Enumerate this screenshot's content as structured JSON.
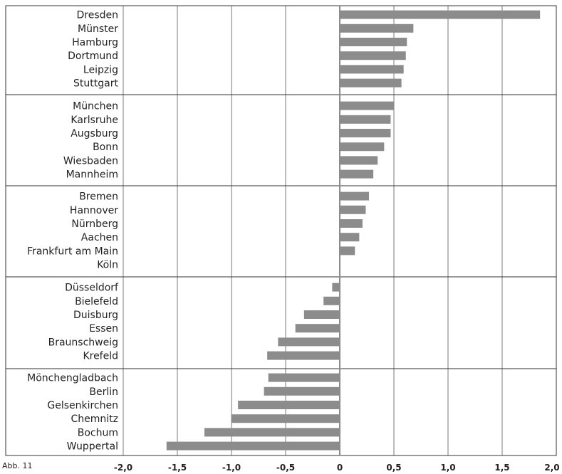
{
  "chart_data": {
    "type": "bar",
    "orientation": "horizontal",
    "categories": [
      "Dresden",
      "Münster",
      "Hamburg",
      "Dortmund",
      "Leipzig",
      "Stuttgart",
      "München",
      "Karlsruhe",
      "Augsburg",
      "Bonn",
      "Wiesbaden",
      "Mannheim",
      "Bremen",
      "Hannover",
      "Nürnberg",
      "Aachen",
      "Frankfurt am Main",
      "Köln",
      "Düsseldorf",
      "Bielefeld",
      "Duisburg",
      "Essen",
      "Braunschweig",
      "Krefeld",
      "Mönchengladbach",
      "Berlin",
      "Gelsenkirchen",
      "Chemnitz",
      "Bochum",
      "Wuppertal"
    ],
    "values": [
      1.85,
      0.68,
      0.62,
      0.61,
      0.59,
      0.57,
      0.5,
      0.47,
      0.47,
      0.41,
      0.35,
      0.31,
      0.27,
      0.24,
      0.21,
      0.18,
      0.14,
      0.0,
      -0.07,
      -0.15,
      -0.33,
      -0.41,
      -0.57,
      -0.67,
      -0.66,
      -0.7,
      -0.94,
      -1.0,
      -1.25,
      -1.6
    ],
    "groups": [
      [
        "Dresden",
        "Münster",
        "Hamburg",
        "Dortmund",
        "Leipzig",
        "Stuttgart"
      ],
      [
        "München",
        "Karlsruhe",
        "Augsburg",
        "Bonn",
        "Wiesbaden",
        "Mannheim"
      ],
      [
        "Bremen",
        "Hannover",
        "Nürnberg",
        "Aachen",
        "Frankfurt am Main",
        "Köln"
      ],
      [
        "Düsseldorf",
        "Bielefeld",
        "Duisburg",
        "Essen",
        "Braunschweig",
        "Krefeld"
      ],
      [
        "Mönchengladbach",
        "Berlin",
        "Gelsenkirchen",
        "Chemnitz",
        "Bochum",
        "Wuppertal"
      ]
    ],
    "xlim": [
      -2.0,
      2.0
    ],
    "xticks": [
      -2.0,
      -1.5,
      -1.0,
      -0.5,
      0,
      0.5,
      1.0,
      1.5,
      2.0
    ],
    "xtick_labels": [
      "-2,0",
      "-1,5",
      "-1,0",
      "-0,5",
      "0",
      "0,5",
      "1,0",
      "1,5",
      "2,0"
    ],
    "grid": true,
    "colors": {
      "bar": "#8c8c8c",
      "grid": "#7a7a7a",
      "zero_line": "#8c8c8c"
    }
  },
  "caption_fragment": "Abb. 11"
}
